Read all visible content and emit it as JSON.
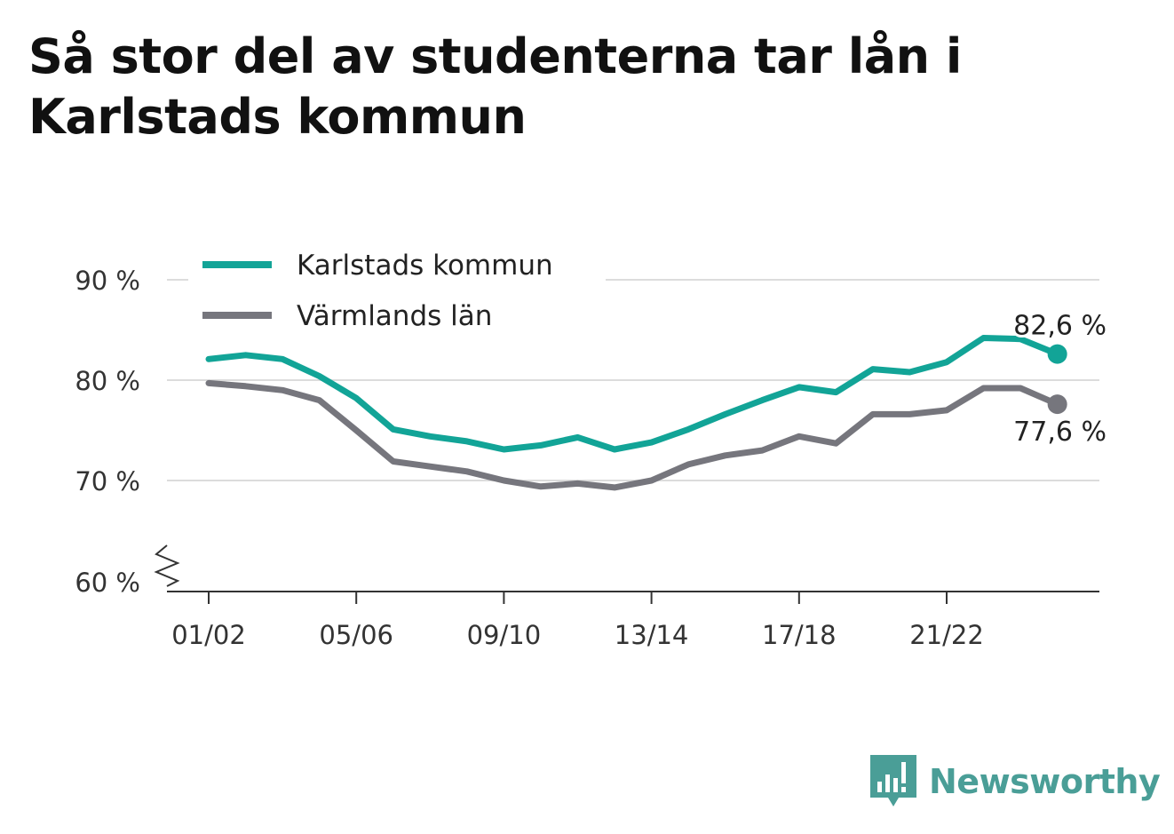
{
  "chart_data": {
    "type": "line",
    "title": "Så stor del av studenterna tar lån i Karlstads kommun",
    "x": [
      "01/02",
      "02/03",
      "03/04",
      "04/05",
      "05/06",
      "06/07",
      "07/08",
      "08/09",
      "09/10",
      "10/11",
      "11/12",
      "12/13",
      "13/14",
      "14/15",
      "15/16",
      "16/17",
      "17/18",
      "18/19",
      "19/20",
      "20/21",
      "21/22",
      "22/23",
      "23/24",
      "24/25"
    ],
    "x_tick_labels": [
      "01/02",
      "05/06",
      "09/10",
      "13/14",
      "17/18",
      "21/22"
    ],
    "series": [
      {
        "name": "Karlstads kommun",
        "color": "#12a497",
        "values": [
          82.1,
          82.5,
          82.1,
          80.4,
          78.2,
          75.1,
          74.4,
          73.9,
          73.1,
          73.5,
          74.3,
          73.1,
          73.8,
          75.1,
          76.6,
          78.0,
          79.3,
          78.8,
          81.1,
          80.8,
          81.8,
          84.2,
          84.1,
          82.6
        ],
        "end_label": "82,6 %"
      },
      {
        "name": "Värmlands län",
        "color": "#76767d",
        "values": [
          79.7,
          79.4,
          79.0,
          78.0,
          75.0,
          71.9,
          71.4,
          70.9,
          70.0,
          69.4,
          69.7,
          69.3,
          70.0,
          71.6,
          72.5,
          73.0,
          74.4,
          73.7,
          76.6,
          76.6,
          77.0,
          79.2,
          79.2,
          77.6
        ],
        "end_label": "77,6 %"
      }
    ],
    "y_ticks": [
      {
        "value": 60,
        "label": "60 %"
      },
      {
        "value": 70,
        "label": "70 %"
      },
      {
        "value": 80,
        "label": "80 %"
      },
      {
        "value": 90,
        "label": "90 %"
      }
    ],
    "ylim": [
      60,
      90
    ],
    "y_axis_break": true,
    "grid": true,
    "legend_position": "top-left"
  },
  "brand": {
    "name": "Newsworthy",
    "logo_color": "#4a9e97",
    "icon": "bar-chart-logo-icon"
  }
}
